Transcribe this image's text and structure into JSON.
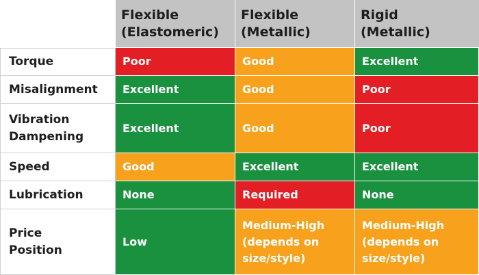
{
  "colors": {
    "poor": "#e31f25",
    "good": "#f7a11d",
    "excellent": "#1a913f",
    "header_bg": "#c3c3c3"
  },
  "headers": [
    "Flexible\n(Elastomeric)",
    "Flexible\n(Metallic)",
    "Rigid\n(Metallic)"
  ],
  "rows": [
    {
      "label": "Torque",
      "cells": [
        "Poor",
        "Good",
        "Excellent"
      ]
    },
    {
      "label": "Misalignment",
      "cells": [
        "Excellent",
        "Good",
        "Poor"
      ]
    },
    {
      "label": "Vibration\nDampening",
      "cells": [
        "Excellent",
        "Good",
        "Poor"
      ]
    },
    {
      "label": "Speed",
      "cells": [
        "Good",
        "Excellent",
        "Excellent"
      ]
    },
    {
      "label": "Lubrication",
      "cells": [
        "None",
        "Required",
        "None"
      ]
    },
    {
      "label": "Price\nPosition",
      "cells": [
        "Low",
        "Medium-High\n(depends on\nsize/style)",
        "Medium-High\n(depends on\nsize/style)"
      ]
    }
  ]
}
